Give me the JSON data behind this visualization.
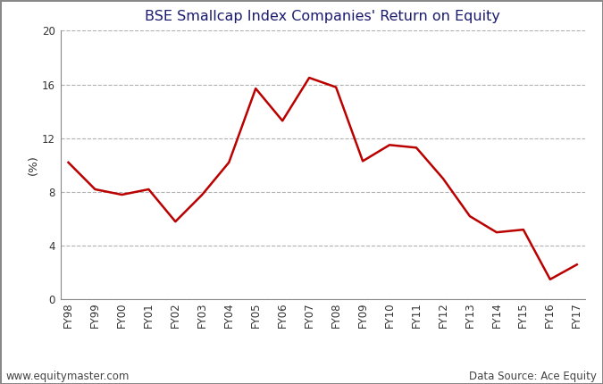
{
  "title": "BSE Smallcap Index Companies' Return on Equity",
  "ylabel": "(%)",
  "categories": [
    "FY98",
    "FY99",
    "FY00",
    "FY01",
    "FY02",
    "FY03",
    "FY04",
    "FY05",
    "FY06",
    "FY07",
    "FY08",
    "FY09",
    "FY10",
    "FY11",
    "FY12",
    "FY13",
    "FY14",
    "FY15",
    "FY16",
    "FY17"
  ],
  "values": [
    10.2,
    8.2,
    7.8,
    8.2,
    5.8,
    7.8,
    10.2,
    15.7,
    13.3,
    16.5,
    15.8,
    10.3,
    11.5,
    11.3,
    9.0,
    6.2,
    5.0,
    5.2,
    1.5,
    2.6
  ],
  "line_color": "#bb0000",
  "line_width": 1.8,
  "ylim": [
    0,
    20
  ],
  "yticks": [
    0,
    4,
    8,
    12,
    16,
    20
  ],
  "grid_color": "#b0b0b0",
  "grid_style": "--",
  "bg_color": "#ffffff",
  "title_color": "#1a1a6e",
  "title_fontsize": 11.5,
  "axis_label_fontsize": 9.5,
  "tick_fontsize": 8.5,
  "footer_left": "www.equitymaster.com",
  "footer_right": "Data Source: Ace Equity",
  "footer_fontsize": 8.5,
  "footer_color": "#444444",
  "spine_color": "#888888"
}
